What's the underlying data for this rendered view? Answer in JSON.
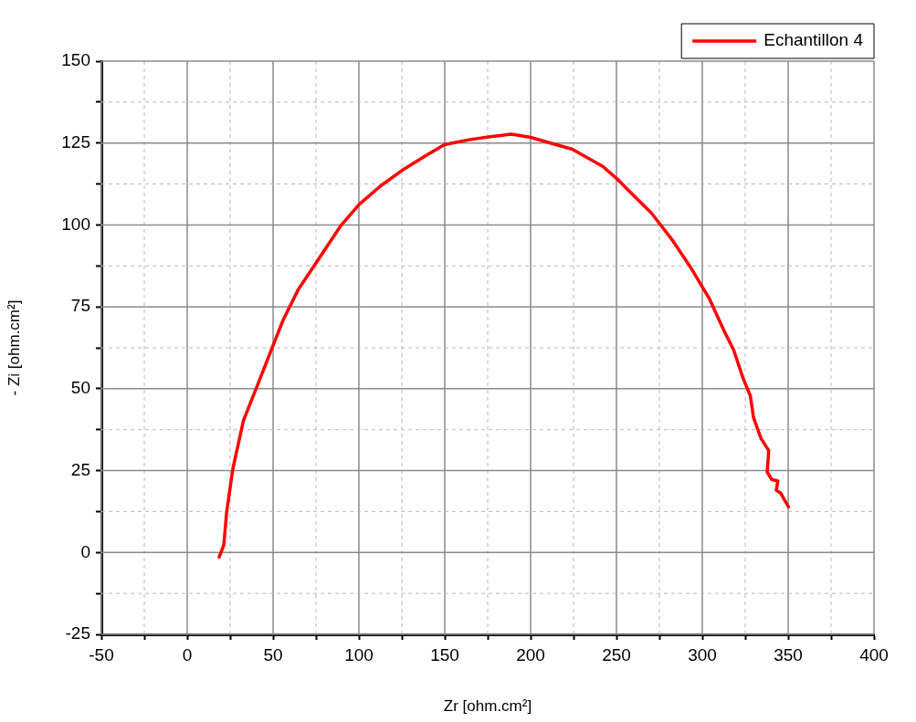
{
  "chart_data": {
    "type": "line",
    "xlabel": "Zr [ohm.cm²]",
    "ylabel": "- Zi [ohm.cm²]",
    "xlim": [
      -50,
      400
    ],
    "ylim": [
      -25,
      150
    ],
    "xticks": [
      -50,
      {
        "value": -25,
        "label": null
      },
      0,
      {
        "value": 25,
        "label": null
      },
      50,
      {
        "value": 75,
        "label": null
      },
      100,
      {
        "value": 125,
        "label": null
      },
      150,
      {
        "value": 175,
        "label": null
      },
      200,
      {
        "value": 225,
        "label": null
      },
      250,
      {
        "value": 275,
        "label": null
      },
      300,
      {
        "value": 325,
        "label": null
      },
      350,
      {
        "value": 375,
        "label": null
      },
      400
    ],
    "yticks": [
      -25,
      {
        "value": -12.5,
        "label": null
      },
      0,
      {
        "value": 12.5,
        "label": null
      },
      25,
      {
        "value": 37.5,
        "label": null
      },
      50,
      {
        "value": 62.5,
        "label": null
      },
      75,
      {
        "value": 87.5,
        "label": null
      },
      100,
      {
        "value": 112.5,
        "label": null
      },
      125,
      {
        "value": 137.5,
        "label": null
      },
      150
    ],
    "grid": true,
    "legend": "top right",
    "marker": "none",
    "line_style": "solid",
    "series": [
      {
        "name": "Echantillon 4",
        "color": "#ff0000",
        "x": [
          18.6,
          21.3,
          23,
          26.6,
          32.8,
          39.9,
          49.6,
          55.9,
          64.7,
          75.4,
          89.5,
          100.2,
          112.6,
          125,
          139.2,
          149.8,
          164,
          174.6,
          188.8,
          199.5,
          224.3,
          242,
          250.9,
          258,
          270.4,
          282.8,
          293.5,
          304.1,
          313,
          318.3,
          323.6,
          328,
          329.8,
          334.2,
          338.7,
          337.8,
          340.4,
          344,
          343.1,
          345.7,
          350.2
        ],
        "values": [
          -1.4,
          2.3,
          12.5,
          25.6,
          40.4,
          49.7,
          62.7,
          71,
          80.3,
          88.7,
          99.8,
          106.3,
          111.9,
          116.6,
          121.2,
          124.5,
          126,
          126.8,
          127.7,
          126.8,
          123.1,
          117.9,
          113.8,
          110,
          103.6,
          95.2,
          86.8,
          77.5,
          67.3,
          61.8,
          53.4,
          47.8,
          41.3,
          34.8,
          31.1,
          24.6,
          22.3,
          21.8,
          19,
          18.1,
          13.9
        ]
      }
    ]
  }
}
